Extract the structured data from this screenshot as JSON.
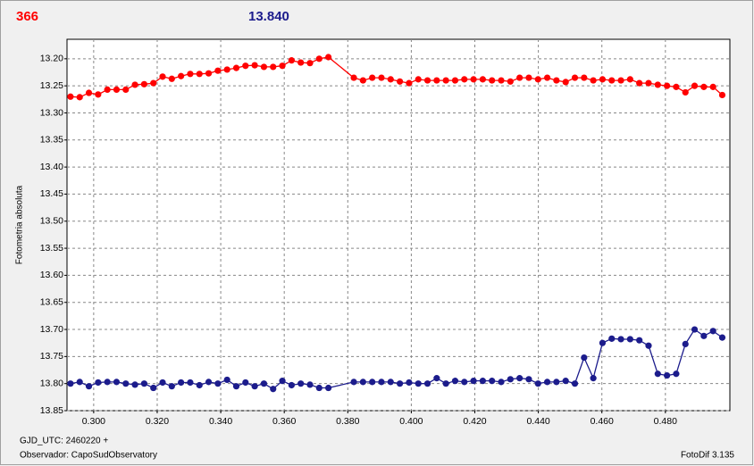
{
  "chart_data": {
    "type": "scatter",
    "top_labels": [
      {
        "text": "366",
        "color": "#ff0000"
      },
      {
        "text": "13.840",
        "color": "#1c1c8c"
      }
    ],
    "ylabel": "Fotometria absoluta",
    "footer": [
      "GJD_UTC: 2460220 +",
      "Observador: CapoSudObservatory"
    ],
    "footer_right": "FotoDif 3.135",
    "grid": true,
    "y_inverted": true,
    "xlim": [
      0.2916,
      0.5003
    ],
    "ylim": [
      13.164,
      13.85
    ],
    "xticks": [
      {
        "value": 0.3,
        "label": "0.300"
      },
      {
        "value": 0.32,
        "label": "0.320"
      },
      {
        "value": 0.34,
        "label": "0.340"
      },
      {
        "value": 0.36,
        "label": "0.360"
      },
      {
        "value": 0.38,
        "label": "0.380"
      },
      {
        "value": 0.4,
        "label": "0.400"
      },
      {
        "value": 0.42,
        "label": "0.420"
      },
      {
        "value": 0.44,
        "label": "0.440"
      },
      {
        "value": 0.46,
        "label": "0.460"
      },
      {
        "value": 0.48,
        "label": "0.480"
      }
    ],
    "yticks": [
      {
        "value": 13.2,
        "label": "13.20"
      },
      13.25,
      {
        "value": 13.3,
        "label": "13.30"
      },
      13.35,
      {
        "value": 13.4,
        "label": "13.40"
      },
      13.45,
      {
        "value": 13.5,
        "label": "13.50"
      },
      13.55,
      {
        "value": 13.6,
        "label": "13.60"
      },
      13.65,
      {
        "value": 13.7,
        "label": "13.70"
      },
      13.75,
      {
        "value": 13.8,
        "label": "13.80"
      },
      13.85
    ],
    "x": [
      0.2927,
      0.2956,
      0.2985,
      0.3014,
      0.3043,
      0.3072,
      0.3101,
      0.313,
      0.3159,
      0.3188,
      0.3217,
      0.3246,
      0.3275,
      0.3304,
      0.3333,
      0.3362,
      0.3391,
      0.342,
      0.3449,
      0.3478,
      0.3507,
      0.3536,
      0.3565,
      0.3594,
      0.3623,
      0.3652,
      0.3681,
      0.371,
      0.3739,
      0.3819,
      0.3848,
      0.3877,
      0.3906,
      0.3935,
      0.3964,
      0.3993,
      0.4022,
      0.4051,
      0.408,
      0.4109,
      0.4138,
      0.4167,
      0.4196,
      0.4225,
      0.4254,
      0.4283,
      0.4312,
      0.4341,
      0.437,
      0.4399,
      0.4428,
      0.4457,
      0.4486,
      0.4515,
      0.4544,
      0.4573,
      0.4602,
      0.4631,
      0.466,
      0.4689,
      0.4718,
      0.4747,
      0.4776,
      0.4805,
      0.4834,
      0.4863,
      0.4892,
      0.4921,
      0.495,
      0.4979
    ],
    "series": [
      {
        "color": "#ff0000",
        "values": [
          13.27,
          13.271,
          13.263,
          13.266,
          13.257,
          13.257,
          13.257,
          13.248,
          13.247,
          13.245,
          13.233,
          13.237,
          13.232,
          13.228,
          13.228,
          13.227,
          13.222,
          13.22,
          13.217,
          13.213,
          13.212,
          13.215,
          13.215,
          13.213,
          13.203,
          13.207,
          13.208,
          13.2,
          13.197,
          13.235,
          13.24,
          13.235,
          13.235,
          13.238,
          13.242,
          13.245,
          13.238,
          13.24,
          13.24,
          13.24,
          13.24,
          13.238,
          13.238,
          13.238,
          13.24,
          13.24,
          13.242,
          13.235,
          13.235,
          13.238,
          13.235,
          13.24,
          13.243,
          13.235,
          13.235,
          13.24,
          13.238,
          13.24,
          13.24,
          13.238,
          13.245,
          13.245,
          13.248,
          13.25,
          13.252,
          13.262,
          13.25,
          13.252,
          13.252,
          13.267
        ]
      },
      {
        "color": "#1c1c8c",
        "values": [
          13.8,
          13.797,
          13.805,
          13.798,
          13.797,
          13.797,
          13.8,
          13.802,
          13.8,
          13.808,
          13.798,
          13.805,
          13.798,
          13.798,
          13.803,
          13.797,
          13.8,
          13.793,
          13.805,
          13.798,
          13.805,
          13.8,
          13.81,
          13.795,
          13.803,
          13.8,
          13.802,
          13.808,
          13.808,
          13.797,
          13.797,
          13.797,
          13.797,
          13.797,
          13.8,
          13.798,
          13.8,
          13.8,
          13.79,
          13.8,
          13.795,
          13.797,
          13.795,
          13.795,
          13.795,
          13.797,
          13.792,
          13.79,
          13.792,
          13.8,
          13.797,
          13.797,
          13.795,
          13.8,
          13.752,
          13.79,
          13.725,
          13.717,
          13.718,
          13.718,
          13.72,
          13.73,
          13.782,
          13.785,
          13.782,
          13.727,
          13.7,
          13.712,
          13.703,
          13.715
        ]
      }
    ]
  }
}
